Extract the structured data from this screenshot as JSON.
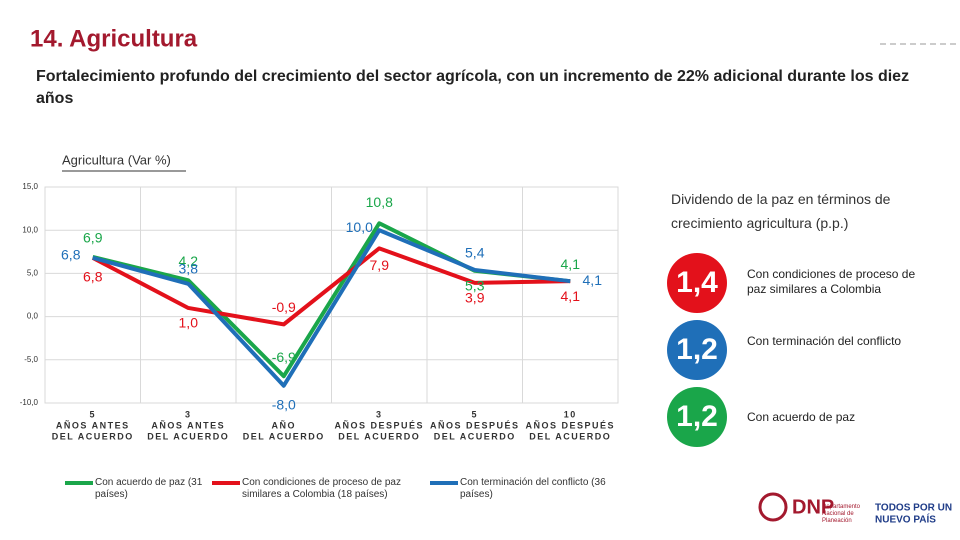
{
  "header": {
    "title": "14. Agricultura",
    "subtitle": "Fortalecimiento profundo del crecimiento del sector agrícola, con un incremento de 22% adicional durante los diez años"
  },
  "chart_data": {
    "type": "line",
    "title": "Agricultura (Var %)",
    "categories": [
      [
        "5",
        "AÑOS ANTES",
        "DEL ACUERDO"
      ],
      [
        "3",
        "AÑOS ANTES",
        "DEL ACUERDO"
      ],
      [
        "AÑO",
        "DEL ACUERDO"
      ],
      [
        "3",
        "AÑOS DESPUÉS",
        "DEL ACUERDO"
      ],
      [
        "5",
        "AÑOS DESPUÉS",
        "DEL ACUERDO"
      ],
      [
        "10",
        "AÑOS DESPUÉS",
        "DEL ACUERDO"
      ]
    ],
    "series": [
      {
        "name": "Con acuerdo de paz (31 países)",
        "color": "#1aa64a",
        "values": [
          6.9,
          4.2,
          -6.9,
          10.8,
          5.3,
          4.1
        ],
        "value_labels": [
          "6,9",
          "4,2",
          "-6,9",
          "10,8",
          "5,3",
          "4,1"
        ]
      },
      {
        "name": "Con condiciones de proceso de paz similares a Colombia (18 países)",
        "color": "#e3111b",
        "values": [
          6.8,
          1.0,
          -0.9,
          7.9,
          3.9,
          4.1
        ],
        "value_labels": [
          "6,8",
          "1,0",
          "-0,9",
          "7,9",
          "3,9",
          "4,1"
        ]
      },
      {
        "name": "Con terminación del conflicto (36 países)",
        "color": "#1f6fb8",
        "values": [
          6.8,
          3.8,
          -8.0,
          10.0,
          5.4,
          4.1
        ],
        "value_labels": [
          "6,8",
          "3,8",
          "-8,0",
          "10,0",
          "5,4",
          "4,1"
        ]
      }
    ],
    "ylim": [
      -10,
      15
    ],
    "yticks": [
      {
        "value": -10,
        "label": "-10,0"
      },
      {
        "value": -5,
        "label": "-5,0"
      },
      {
        "value": 0,
        "label": "0,0"
      },
      {
        "value": 5,
        "label": "5,0"
      },
      {
        "value": 10,
        "label": "10,0"
      },
      {
        "value": 15,
        "label": "15,0"
      }
    ],
    "grid": true
  },
  "dividend": {
    "title": "Dividendo de la paz en términos de crecimiento agricultura (p.p.)",
    "items": [
      {
        "value": "1,4",
        "label": "Con condiciones de proceso de paz similares a Colombia",
        "color": "#e3111b"
      },
      {
        "value": "1,2",
        "label": "Con terminación del conflicto",
        "color": "#1f6fb8"
      },
      {
        "value": "1,2",
        "label": "Con acuerdo de paz",
        "color": "#1aa64a"
      }
    ]
  },
  "logos": {
    "dnp": "DNP",
    "dnp_name": "Departamento Nacional de Planeación",
    "gov_line1": "TODOS POR UN",
    "gov_line2": "NUEVO PAÍS"
  }
}
